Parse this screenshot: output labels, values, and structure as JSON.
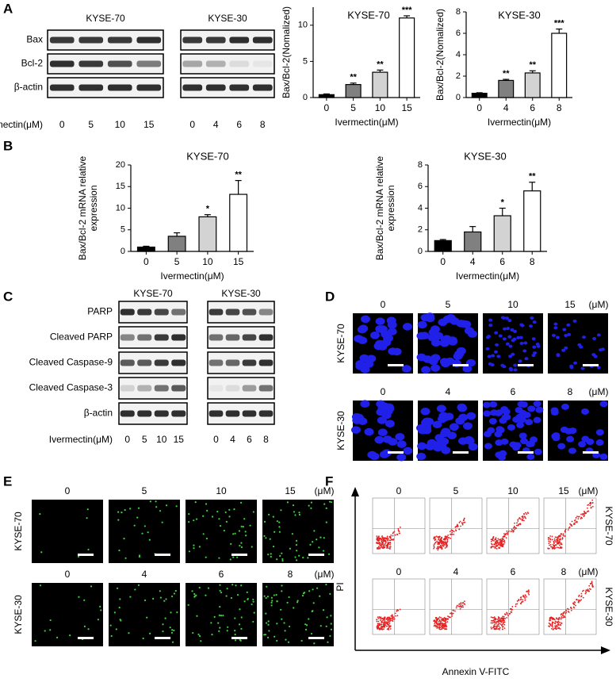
{
  "panels": {
    "labels": [
      "A",
      "B",
      "C",
      "D",
      "E",
      "F"
    ]
  },
  "blot_a": {
    "cell_lines": [
      "KYSE-70",
      "KYSE-30"
    ],
    "proteins": [
      "Bax",
      "Bcl-2",
      "β-actin"
    ],
    "treatment": "Ivermectin(μM)",
    "doses": [
      [
        "0",
        "5",
        "10",
        "15"
      ],
      [
        "0",
        "4",
        "6",
        "8"
      ]
    ]
  },
  "blot_c": {
    "cell_lines": [
      "KYSE-70",
      "KYSE-30"
    ],
    "proteins": [
      "PARP",
      "Cleaved PARP",
      "Cleaved Caspase-9",
      "Cleaved Caspase-3",
      "β-actin"
    ],
    "treatment": "Ivermectin(μM)",
    "doses": [
      [
        "0",
        "5",
        "10",
        "15"
      ],
      [
        "0",
        "4",
        "6",
        "8"
      ]
    ]
  },
  "image_d": {
    "cell_lines": [
      "KYSE-70",
      "KYSE-30"
    ],
    "doses": [
      [
        "0",
        "5",
        "10",
        "15"
      ],
      [
        "0",
        "4",
        "6",
        "8"
      ]
    ],
    "unit": "(μM)"
  },
  "image_e": {
    "cell_lines": [
      "KYSE-70",
      "KYSE-30"
    ],
    "doses": [
      [
        "0",
        "5",
        "10",
        "15"
      ],
      [
        "0",
        "4",
        "6",
        "8"
      ]
    ],
    "unit": "(μM)"
  },
  "flow_f": {
    "cell_lines": [
      "KYSE-70",
      "KYSE-30"
    ],
    "doses": [
      [
        "0",
        "5",
        "10",
        "15"
      ],
      [
        "0",
        "4",
        "6",
        "8"
      ]
    ],
    "unit": "(μM)",
    "y_label": "PI",
    "x_label": "Annexin V-FITC"
  },
  "chart_data": [
    {
      "type": "bar",
      "title": "KYSE-70",
      "y_label": [
        "Bax/Bcl-2(Nomalized)"
      ],
      "x_label": "Ivermectin(μM)",
      "categories": [
        "0",
        "5",
        "10",
        "15"
      ],
      "values": [
        0.4,
        1.8,
        3.5,
        11.0
      ],
      "errors": [
        0.1,
        0.2,
        0.3,
        0.3
      ],
      "colors": [
        "#000000",
        "#808080",
        "#d3d3d3",
        "#ffffff"
      ],
      "significance": [
        null,
        "**",
        "**",
        "***"
      ],
      "ylim": [
        0,
        12.5
      ],
      "yticks": [
        0,
        5,
        10
      ]
    },
    {
      "type": "bar",
      "title": "KYSE-30",
      "y_label": [
        "Bax/Bcl-2(Nomalized)"
      ],
      "x_label": "Ivermectin(μM)",
      "categories": [
        "0",
        "4",
        "6",
        "8"
      ],
      "values": [
        0.4,
        1.6,
        2.3,
        6.0
      ],
      "errors": [
        0.05,
        0.1,
        0.2,
        0.4
      ],
      "colors": [
        "#000000",
        "#808080",
        "#d3d3d3",
        "#ffffff"
      ],
      "significance": [
        null,
        "**",
        "**",
        "***"
      ],
      "ylim": [
        0,
        8
      ],
      "yticks": [
        0,
        2,
        4,
        6,
        8
      ]
    },
    {
      "type": "bar",
      "title": "KYSE-70",
      "y_label": [
        "Bax/Bcl-2 mRNA relative",
        "expression"
      ],
      "x_label": "Ivermectin(μM)",
      "categories": [
        "0",
        "5",
        "10",
        "15"
      ],
      "values": [
        1.0,
        3.5,
        8.0,
        13.2
      ],
      "errors": [
        0.2,
        0.8,
        0.5,
        3.2
      ],
      "colors": [
        "#000000",
        "#808080",
        "#d3d3d3",
        "#ffffff"
      ],
      "significance": [
        null,
        null,
        "*",
        "**"
      ],
      "ylim": [
        0,
        20
      ],
      "yticks": [
        0,
        5,
        10,
        15,
        20
      ]
    },
    {
      "type": "bar",
      "title": "KYSE-30",
      "y_label": [
        "Bax/Bcl-2 mRNA relative",
        "expression"
      ],
      "x_label": "Ivermectin(μM)",
      "categories": [
        "0",
        "4",
        "6",
        "8"
      ],
      "values": [
        1.0,
        1.8,
        3.3,
        5.6
      ],
      "errors": [
        0.1,
        0.5,
        0.7,
        0.8
      ],
      "colors": [
        "#000000",
        "#808080",
        "#d3d3d3",
        "#ffffff"
      ],
      "significance": [
        null,
        null,
        "*",
        "**"
      ],
      "ylim": [
        0,
        8
      ],
      "yticks": [
        0,
        2,
        4,
        6,
        8
      ]
    }
  ]
}
